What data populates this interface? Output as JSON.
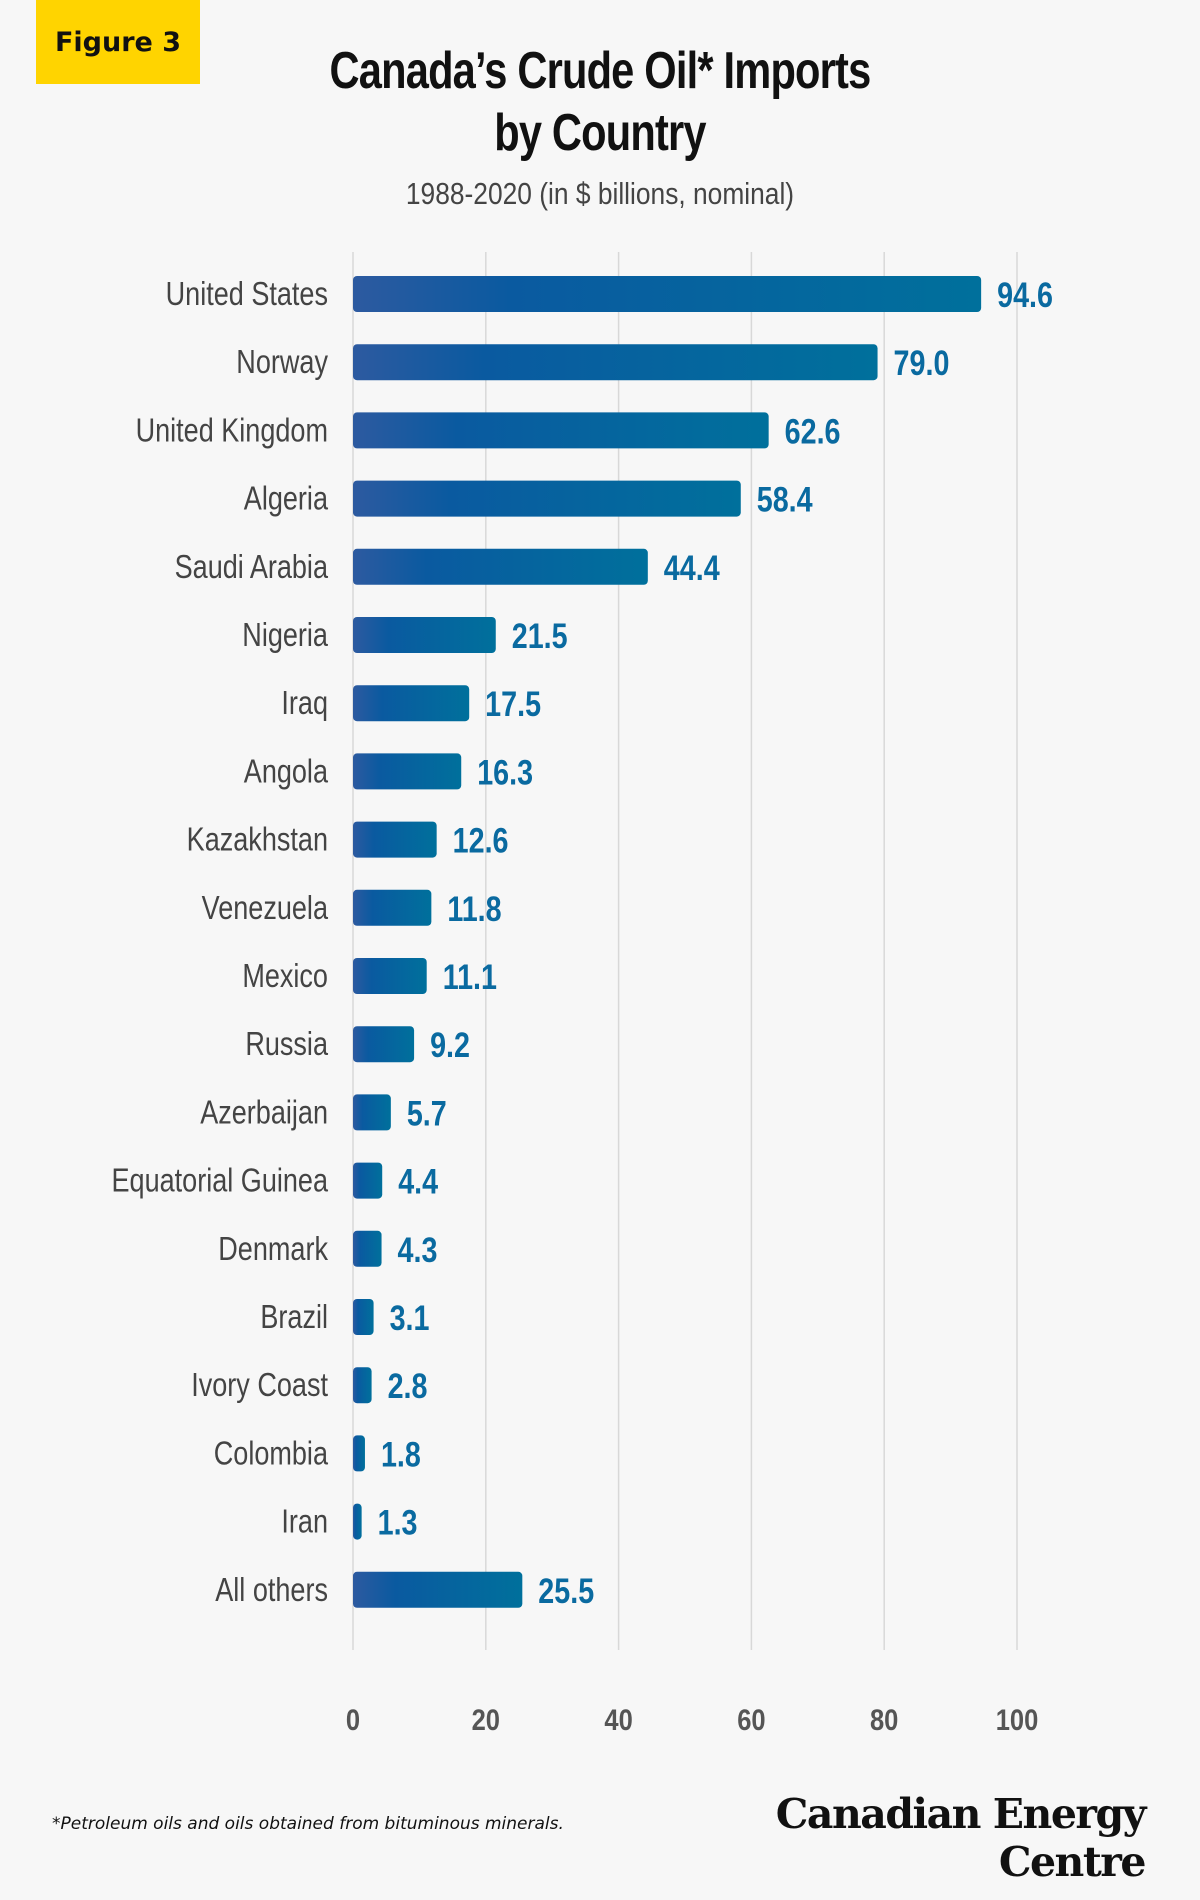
{
  "badge": "Figure 3",
  "footnote": "*Petroleum oils and oils obtained from bituminous minerals.",
  "brand": "Canadian Energy Centre",
  "colors": {
    "bar_start": "#2d5aa0",
    "bar_mid": "#0a5aa0",
    "bar_end": "#00709c",
    "value_label": "#0a6aa0",
    "category_label": "#444444",
    "grid": "#d8d8d8",
    "badge": "#ffd400",
    "background": "#f7f7f7"
  },
  "chart_data": {
    "type": "bar",
    "orientation": "horizontal",
    "title": "Canada’s Crude Oil* Imports by Country",
    "subtitle": "1988-2020 (in $ billions, nominal)",
    "categories": [
      "United States",
      "Norway",
      "United Kingdom",
      "Algeria",
      "Saudi Arabia",
      "Nigeria",
      "Iraq",
      "Angola",
      "Kazakhstan",
      "Venezuela",
      "Mexico",
      "Russia",
      "Azerbaijan",
      "Equatorial Guinea",
      "Denmark",
      "Brazil",
      "Ivory Coast",
      "Colombia",
      "Iran",
      "All others"
    ],
    "values": [
      94.6,
      79.0,
      62.6,
      58.4,
      44.4,
      21.5,
      17.5,
      16.3,
      12.6,
      11.8,
      11.1,
      9.2,
      5.7,
      4.4,
      4.3,
      3.1,
      2.8,
      1.8,
      1.3,
      25.5
    ],
    "value_labels": [
      "94.6",
      "79.0",
      "62.6",
      "58.4",
      "44.4",
      "21.5",
      "17.5",
      "16.3",
      "12.6",
      "11.8",
      "11.1",
      "9.2",
      "5.7",
      "4.4",
      "4.3",
      "3.1",
      "2.8",
      "1.8",
      "1.3",
      "25.5"
    ],
    "xlim": [
      0,
      100
    ],
    "xticks": [
      "0",
      "20",
      "40",
      "60",
      "80",
      "100"
    ],
    "grid": true,
    "xlabel": "",
    "ylabel": ""
  }
}
